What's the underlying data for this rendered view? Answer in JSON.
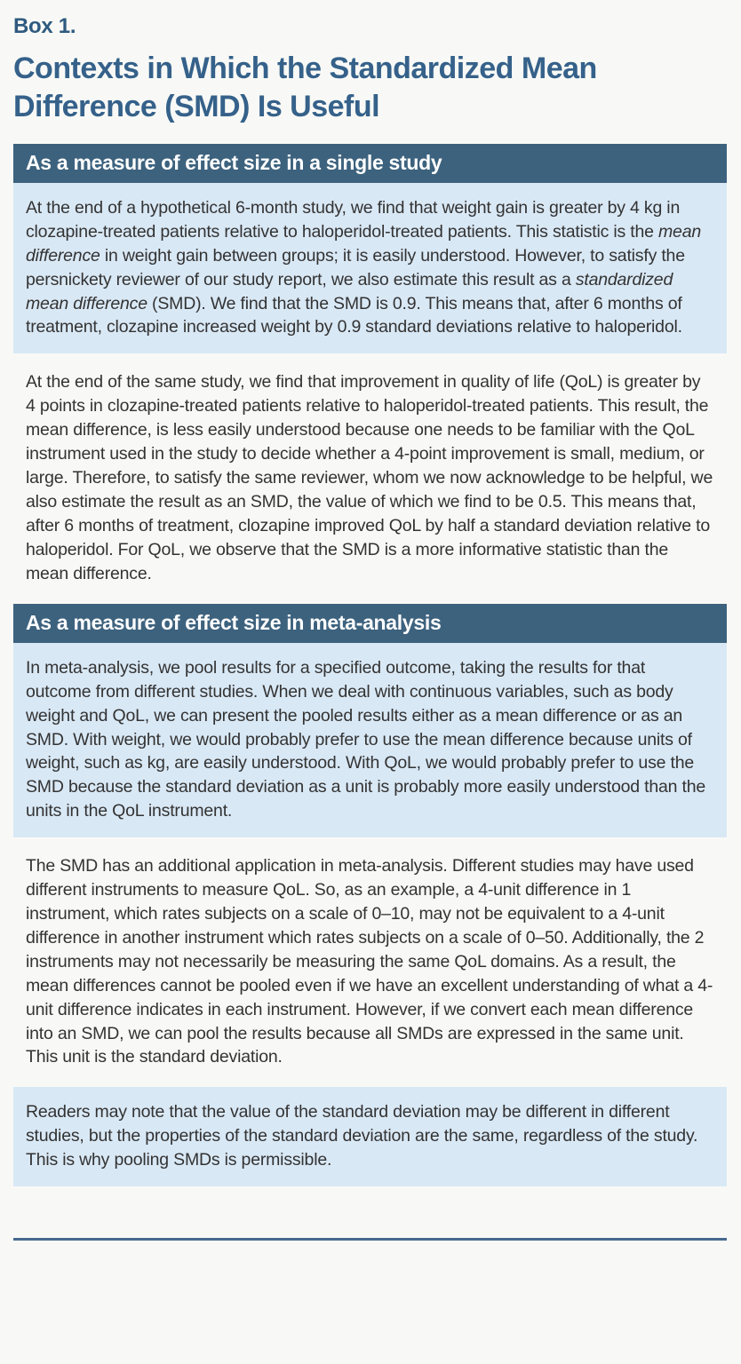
{
  "theme": {
    "page_bg": "#f8f9f6",
    "header_bar_bg": "#3d627e",
    "header_bar_text": "#ffffff",
    "highlight_bg": "#d9e8f5",
    "title_color": "#35618a",
    "label_color": "#2f5a80",
    "body_text_color": "#333333",
    "rule_color": "#47698e"
  },
  "box": {
    "label": "Box 1.",
    "title": "Contexts in Which the Standardized Mean Difference (SMD) Is Useful",
    "sections": [
      {
        "header": "As a measure of effect size in a single study",
        "paragraphs": [
          {
            "highlight": true,
            "segments": [
              {
                "italic": false,
                "text": "At the end of a hypothetical 6-month study, we find that weight gain is greater by 4 kg in clozapine-treated patients relative to haloperidol-treated patients. This statistic is the "
              },
              {
                "italic": true,
                "text": "mean difference"
              },
              {
                "italic": false,
                "text": " in weight gain between groups; it is easily understood. However, to satisfy the persnickety reviewer of our study report, we also estimate this result as a "
              },
              {
                "italic": true,
                "text": "standardized mean difference"
              },
              {
                "italic": false,
                "text": " (SMD). We find that the SMD is 0.9. This means that, after 6 months of treatment, clozapine increased weight by 0.9 standard deviations relative to haloperidol."
              }
            ]
          },
          {
            "highlight": false,
            "segments": [
              {
                "italic": false,
                "text": "At the end of the same study, we find that improvement in quality of life (QoL) is greater by 4 points in clozapine-treated patients relative to haloperidol-treated patients. This result, the mean difference, is less easily understood because one needs to be familiar with the QoL instrument used in the study to decide whether a 4-point improvement is small, medium, or large. Therefore, to satisfy the same reviewer, whom we now acknowledge to be helpful, we also estimate the result as an SMD, the value of which we find to be 0.5. This means that, after 6 months of treatment, clozapine improved QoL by half a standard deviation relative to haloperidol. For QoL, we observe that the SMD is a more informative statistic than the mean difference."
              }
            ]
          }
        ]
      },
      {
        "header": "As a measure of effect size in meta-analysis",
        "paragraphs": [
          {
            "highlight": true,
            "segments": [
              {
                "italic": false,
                "text": "In meta-analysis, we pool results for a specified outcome, taking the results for that outcome from different studies. When we deal with continuous variables, such as body weight and QoL, we can present the pooled results either as a mean difference or as an SMD. With weight, we would probably prefer to use the mean difference because units of weight, such as kg, are easily understood. With QoL, we would probably prefer to use the SMD because the standard deviation as a unit is probably more easily understood than the units in the QoL instrument."
              }
            ]
          },
          {
            "highlight": false,
            "segments": [
              {
                "italic": false,
                "text": "The SMD has an additional application in meta-analysis. Different studies may have used different instruments to measure QoL. So, as an example, a 4-unit difference in 1 instrument, which rates subjects on a scale of 0–10, may not be equivalent to a 4-unit difference in another instrument which rates subjects on a scale of 0–50. Additionally, the 2 instruments may not necessarily be measuring the same QoL domains. As a result, the mean differences cannot be pooled even if we have an excellent understanding of what a 4-unit difference indicates in each instrument. However, if we convert each mean difference into an SMD, we can pool the results because all SMDs are expressed in the same unit. This unit is the standard deviation."
              }
            ]
          },
          {
            "highlight": true,
            "segments": [
              {
                "italic": false,
                "text": "Readers may note that the value of the standard deviation may be different in different studies, but the properties of the standard deviation are the same, regardless of the study. This is why pooling SMDs is permissible."
              }
            ]
          }
        ]
      }
    ]
  }
}
